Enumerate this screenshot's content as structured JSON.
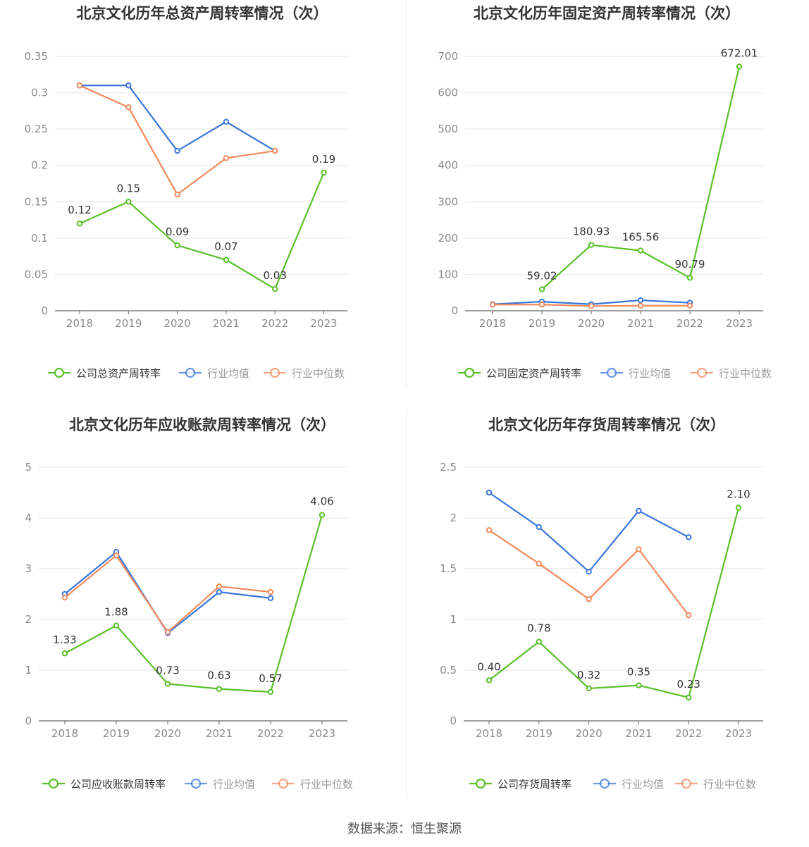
{
  "colors": {
    "company": "#5ac02b",
    "avg": "#3a76d8",
    "median": "#f08a5d"
  },
  "source": "数据来源：恒生聚源",
  "chart_data": [
    {
      "type": "line",
      "title": "北京文化历年总资产周转率情况（次）",
      "categories": [
        "2018",
        "2019",
        "2020",
        "2021",
        "2022",
        "2023"
      ],
      "yticks": [
        "0",
        "0.05",
        "0.1",
        "0.15",
        "0.2",
        "0.25",
        "0.3",
        "0.35"
      ],
      "ylim": [
        0,
        0.35
      ],
      "series": [
        {
          "name": "公司总资产周转率",
          "role": "company",
          "values": [
            0.12,
            0.15,
            0.09,
            0.07,
            0.03,
            0.19
          ],
          "labels": [
            "0.12",
            "0.15",
            "0.09",
            "0.07",
            "0.03",
            "0.19"
          ]
        },
        {
          "name": "行业均值",
          "role": "avg",
          "values": [
            0.31,
            0.31,
            0.22,
            0.26,
            0.22,
            null
          ]
        },
        {
          "name": "行业中位数",
          "role": "median",
          "values": [
            0.31,
            0.28,
            0.16,
            0.21,
            0.22,
            null
          ]
        }
      ]
    },
    {
      "type": "line",
      "title": "北京文化历年固定资产周转率情况（次）",
      "categories": [
        "2018",
        "2019",
        "2020",
        "2021",
        "2022",
        "2023"
      ],
      "yticks": [
        "0",
        "100",
        "200",
        "300",
        "400",
        "500",
        "600",
        "700"
      ],
      "ylim": [
        0,
        700
      ],
      "series": [
        {
          "name": "公司固定资产周转率",
          "role": "company",
          "values": [
            null,
            59.02,
            180.93,
            165.56,
            90.79,
            672.01
          ],
          "labels": [
            null,
            "59.02",
            "180.93",
            "165.56",
            "90.79",
            "672.01"
          ]
        },
        {
          "name": "行业均值",
          "role": "avg",
          "values": [
            18,
            25,
            18,
            29,
            22,
            null
          ]
        },
        {
          "name": "行业中位数",
          "role": "median",
          "values": [
            17,
            17,
            13,
            14,
            14,
            null
          ]
        }
      ]
    },
    {
      "type": "line",
      "title": "北京文化历年应收账款周转率情况（次）",
      "categories": [
        "2018",
        "2019",
        "2020",
        "2021",
        "2022",
        "2023"
      ],
      "yticks": [
        "0",
        "1",
        "2",
        "3",
        "4",
        "5"
      ],
      "ylim": [
        0,
        5
      ],
      "series": [
        {
          "name": "公司应收账款周转率",
          "role": "company",
          "values": [
            1.33,
            1.88,
            0.73,
            0.63,
            0.57,
            4.06
          ],
          "labels": [
            "1.33",
            "1.88",
            "0.73",
            "0.63",
            "0.57",
            "4.06"
          ]
        },
        {
          "name": "行业均值",
          "role": "avg",
          "values": [
            2.5,
            3.33,
            1.73,
            2.54,
            2.42,
            null
          ]
        },
        {
          "name": "行业中位数",
          "role": "median",
          "values": [
            2.43,
            3.26,
            1.75,
            2.65,
            2.54,
            null
          ]
        }
      ]
    },
    {
      "type": "line",
      "title": "北京文化历年存货周转率情况（次）",
      "categories": [
        "2018",
        "2019",
        "2020",
        "2021",
        "2022",
        "2023"
      ],
      "yticks": [
        "0",
        "0.5",
        "1",
        "1.5",
        "2",
        "2.5"
      ],
      "ylim": [
        0,
        2.5
      ],
      "series": [
        {
          "name": "公司存货周转率",
          "role": "company",
          "values": [
            0.4,
            0.78,
            0.32,
            0.35,
            0.23,
            2.1
          ],
          "labels": [
            "0.40",
            "0.78",
            "0.32",
            "0.35",
            "0.23",
            "2.10"
          ]
        },
        {
          "name": "行业均值",
          "role": "avg",
          "values": [
            2.25,
            1.91,
            1.47,
            2.07,
            1.81,
            null
          ]
        },
        {
          "name": "行业中位数",
          "role": "median",
          "values": [
            1.88,
            1.55,
            1.2,
            1.69,
            1.04,
            null
          ]
        }
      ]
    }
  ]
}
